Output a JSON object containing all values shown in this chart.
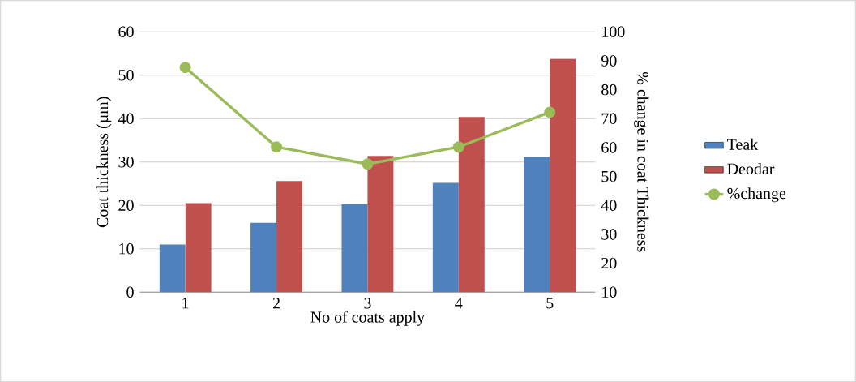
{
  "chart_data": {
    "type": "bar",
    "xlabel": "No of coats apply",
    "ylabel": "Coat thickness (µm)",
    "y2label": "% change in coat Thickness",
    "categories": [
      "1",
      "2",
      "3",
      "4",
      "5"
    ],
    "series": [
      {
        "name": "Teak",
        "color": "#4f81bd",
        "values": [
          11,
          16,
          20.3,
          25.2,
          31.2
        ]
      },
      {
        "name": "Deodar",
        "color": "#c0504d",
        "values": [
          20.5,
          25.6,
          31.4,
          40.4,
          53.8
        ]
      },
      {
        "name": "%change",
        "type": "line",
        "axis": "y2",
        "marker": "circle",
        "color": "#9bbb59",
        "values": [
          87.7,
          60.2,
          54.3,
          60.2,
          72.2
        ]
      }
    ],
    "ylim": [
      0,
      60
    ],
    "yticks": [
      0,
      10,
      20,
      30,
      40,
      50,
      60
    ],
    "y2lim": [
      10,
      100
    ],
    "y2ticks": [
      10,
      20,
      30,
      40,
      50,
      60,
      70,
      80,
      90,
      100
    ],
    "grid": "y",
    "legend": "right"
  }
}
